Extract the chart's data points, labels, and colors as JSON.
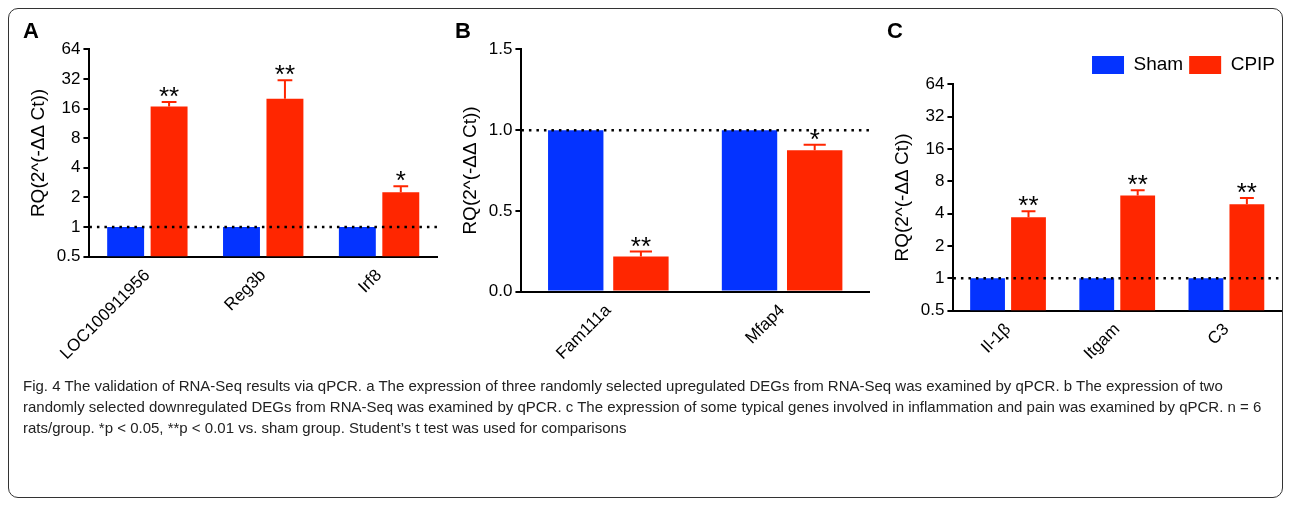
{
  "chart_data": [
    {
      "type": "bar",
      "title": "A",
      "ylabel": "RQ(2^(-ΔΔ Ct))",
      "categories": [
        "LOC100911956",
        "Reg3b",
        "Irf8"
      ],
      "log": "y",
      "ylim": [
        0.5,
        64
      ],
      "yticks": [
        0.5,
        1,
        2,
        4,
        8,
        16,
        32,
        64
      ],
      "grid": false,
      "legend": false,
      "series": [
        {
          "color": "#0433ff",
          "values": [
            1,
            1,
            1
          ]
        },
        {
          "color": "#ff2600",
          "values": [
            16.8,
            20.2,
            2.25
          ],
          "errors": [
            [
              16.8,
              18.7
            ],
            [
              20.2,
              31
            ],
            [
              2.25,
              2.6
            ]
          ]
        }
      ],
      "ref_lines": [
        {
          "axis": "y",
          "value": 1,
          "line_style": "dotted",
          "color": "#000000"
        }
      ],
      "annotations": [
        "**",
        "**",
        "*"
      ]
    },
    {
      "type": "bar",
      "title": "B",
      "ylabel": "RQ(2^(-ΔΔ Ct))",
      "categories": [
        "Fam111a",
        "Mfap4"
      ],
      "ylim": [
        0,
        1.5
      ],
      "yticks": [
        {
          "value": 0,
          "label": "0.0"
        },
        0.5,
        {
          "value": 1,
          "label": "1.0"
        },
        1.5
      ],
      "grid": false,
      "legend": false,
      "series": [
        {
          "color": "#0433ff",
          "values": [
            1,
            1
          ]
        },
        {
          "color": "#ff2600",
          "values": [
            0.217,
            0.875
          ],
          "errors": [
            [
              0.217,
              0.248
            ],
            [
              0.875,
              0.91
            ]
          ]
        }
      ],
      "ref_lines": [
        {
          "axis": "y",
          "value": 1,
          "line_style": "dotted",
          "color": "#000000"
        }
      ],
      "annotations": [
        "**",
        "*"
      ]
    },
    {
      "type": "bar",
      "title": "C",
      "ylabel": "RQ(2^(-ΔΔ Ct))",
      "categories": [
        "Il-1β",
        "Itgam",
        "C3"
      ],
      "log": "y",
      "ylim": [
        0.5,
        64
      ],
      "yticks": [
        0.5,
        1,
        2,
        4,
        8,
        16,
        32,
        64
      ],
      "grid": false,
      "legend": "top right",
      "series": [
        {
          "name": "Sham",
          "color": "#0433ff",
          "values": [
            1,
            1,
            1
          ]
        },
        {
          "name": "CPIP",
          "color": "#ff2600",
          "values": [
            3.7,
            5.9,
            4.9
          ],
          "errors": [
            [
              3.7,
              4.2
            ],
            [
              5.9,
              6.6
            ],
            [
              4.9,
              5.6
            ]
          ]
        }
      ],
      "ref_lines": [
        {
          "axis": "y",
          "value": 1,
          "line_style": "dotted",
          "color": "#000000"
        }
      ],
      "annotations": [
        "**",
        "**",
        "**",
        "Fig. 4 The validation of RNA-Seq results via qPCR. a The expression of three randomly selected upregulated DEGs from RNA-Seq was examined by qPCR. b The expression of two randomly selected downregulated DEGs from RNA-Seq was examined by qPCR. c The expression of some typical genes involved in inflammation and pain was examined by qPCR. n = 6 rats/group. *p < 0.05, **p < 0.01 vs. sham group. Student’s t test was used for comparisons"
      ]
    }
  ]
}
